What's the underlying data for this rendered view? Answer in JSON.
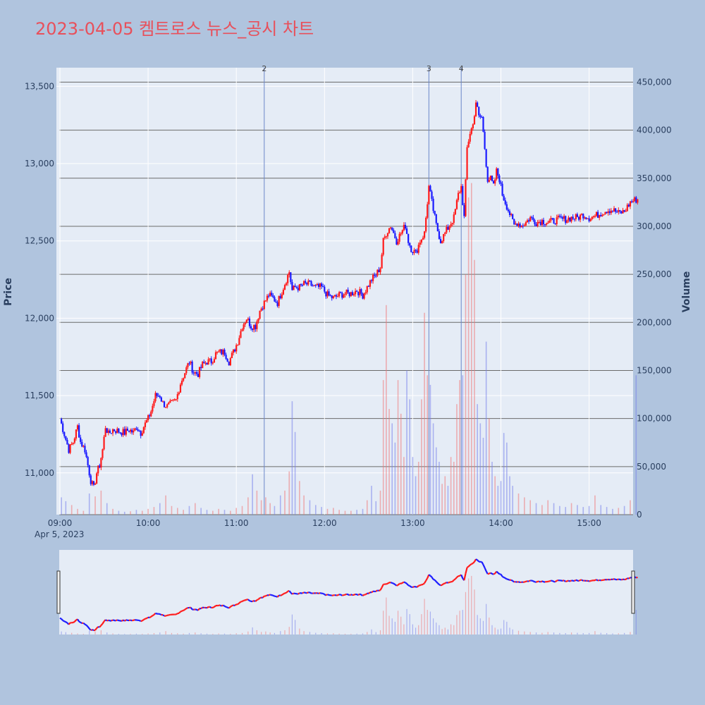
{
  "chart_data": {
    "type": "candlestick",
    "title": "2023-04-05 켐트로스 뉴스_공시 차트",
    "date_label": "Apr 5, 2023",
    "y_price_label": "Price",
    "y_volume_label": "Volume",
    "price_ylim": [
      10730,
      13620
    ],
    "volume_ylim": [
      0,
      465000
    ],
    "x_ticks": [
      "09:00",
      "10:00",
      "11:00",
      "12:00",
      "13:00",
      "14:00",
      "15:00"
    ],
    "x_range_minutes": [
      0,
      393
    ],
    "price_ticks": [
      "11,000",
      "11,500",
      "12,000",
      "12,500",
      "13,000",
      "13,500"
    ],
    "price_tick_values": [
      11000,
      11500,
      12000,
      12500,
      13000,
      13500
    ],
    "volume_ticks": [
      "0",
      "50,000",
      "100,000",
      "150,000",
      "200,000",
      "250,000",
      "300,000",
      "350,000",
      "400,000",
      "450,000"
    ],
    "volume_tick_values": [
      0,
      50000,
      100000,
      150000,
      200000,
      250000,
      300000,
      350000,
      400000,
      450000
    ],
    "annotations": [
      {
        "label": "2",
        "minute": 139
      },
      {
        "label": "3",
        "minute": 251
      },
      {
        "label": "4",
        "minute": 273
      }
    ],
    "price_path": [
      [
        0,
        11350
      ],
      [
        3,
        11250
      ],
      [
        6,
        11150
      ],
      [
        9,
        11200
      ],
      [
        12,
        11300
      ],
      [
        14,
        11200
      ],
      [
        17,
        11150
      ],
      [
        19,
        11050
      ],
      [
        21,
        10950
      ],
      [
        23,
        10900
      ],
      [
        25,
        11000
      ],
      [
        27,
        11050
      ],
      [
        29,
        11150
      ],
      [
        31,
        11300
      ],
      [
        33,
        11250
      ],
      [
        36,
        11280
      ],
      [
        40,
        11270
      ],
      [
        44,
        11260
      ],
      [
        47,
        11280
      ],
      [
        50,
        11260
      ],
      [
        52,
        11300
      ],
      [
        55,
        11260
      ],
      [
        57,
        11300
      ],
      [
        60,
        11350
      ],
      [
        62,
        11400
      ],
      [
        65,
        11500
      ],
      [
        68,
        11500
      ],
      [
        70,
        11450
      ],
      [
        73,
        11430
      ],
      [
        76,
        11450
      ],
      [
        79,
        11470
      ],
      [
        82,
        11580
      ],
      [
        85,
        11650
      ],
      [
        88,
        11720
      ],
      [
        91,
        11650
      ],
      [
        94,
        11640
      ],
      [
        97,
        11700
      ],
      [
        100,
        11720
      ],
      [
        103,
        11720
      ],
      [
        106,
        11770
      ],
      [
        109,
        11780
      ],
      [
        112,
        11780
      ],
      [
        115,
        11720
      ],
      [
        118,
        11780
      ],
      [
        121,
        11850
      ],
      [
        124,
        11950
      ],
      [
        127,
        12000
      ],
      [
        130,
        11950
      ],
      [
        133,
        11950
      ],
      [
        136,
        12050
      ],
      [
        139,
        12100
      ],
      [
        142,
        12150
      ],
      [
        145,
        12130
      ],
      [
        148,
        12100
      ],
      [
        150,
        12150
      ],
      [
        152,
        12200
      ],
      [
        154,
        12250
      ],
      [
        156,
        12300
      ],
      [
        158,
        12180
      ],
      [
        160,
        12200
      ],
      [
        163,
        12200
      ],
      [
        166,
        12220
      ],
      [
        170,
        12220
      ],
      [
        174,
        12200
      ],
      [
        178,
        12200
      ],
      [
        182,
        12150
      ],
      [
        186,
        12130
      ],
      [
        190,
        12150
      ],
      [
        194,
        12160
      ],
      [
        198,
        12160
      ],
      [
        202,
        12180
      ],
      [
        206,
        12150
      ],
      [
        209,
        12200
      ],
      [
        212,
        12250
      ],
      [
        215,
        12280
      ],
      [
        218,
        12330
      ],
      [
        220,
        12500
      ],
      [
        222,
        12550
      ],
      [
        225,
        12600
      ],
      [
        227,
        12550
      ],
      [
        229,
        12500
      ],
      [
        232,
        12550
      ],
      [
        235,
        12600
      ],
      [
        237,
        12500
      ],
      [
        239,
        12450
      ],
      [
        242,
        12420
      ],
      [
        245,
        12500
      ],
      [
        248,
        12550
      ],
      [
        251,
        12850
      ],
      [
        253,
        12750
      ],
      [
        256,
        12600
      ],
      [
        259,
        12500
      ],
      [
        262,
        12550
      ],
      [
        265,
        12600
      ],
      [
        268,
        12650
      ],
      [
        271,
        12800
      ],
      [
        273,
        12850
      ],
      [
        275,
        12650
      ],
      [
        277,
        13100
      ],
      [
        279,
        13200
      ],
      [
        281,
        13250
      ],
      [
        283,
        13400
      ],
      [
        285,
        13300
      ],
      [
        287,
        13300
      ],
      [
        289,
        13100
      ],
      [
        291,
        12900
      ],
      [
        293,
        12900
      ],
      [
        295,
        12850
      ],
      [
        297,
        12950
      ],
      [
        299,
        12900
      ],
      [
        301,
        12800
      ],
      [
        303,
        12750
      ],
      [
        305,
        12700
      ],
      [
        307,
        12650
      ],
      [
        309,
        12600
      ],
      [
        311,
        12620
      ],
      [
        314,
        12600
      ],
      [
        317,
        12620
      ],
      [
        320,
        12650
      ],
      [
        324,
        12620
      ],
      [
        328,
        12630
      ],
      [
        332,
        12620
      ],
      [
        336,
        12630
      ],
      [
        340,
        12640
      ],
      [
        344,
        12640
      ],
      [
        348,
        12650
      ],
      [
        352,
        12650
      ],
      [
        356,
        12670
      ],
      [
        360,
        12650
      ],
      [
        364,
        12660
      ],
      [
        368,
        12680
      ],
      [
        372,
        12700
      ],
      [
        376,
        12700
      ],
      [
        380,
        12680
      ],
      [
        384,
        12690
      ],
      [
        388,
        12750
      ],
      [
        390,
        12760
      ],
      [
        393,
        12770
      ]
    ],
    "volume_bars": [
      [
        1,
        18000
      ],
      [
        4,
        14000
      ],
      [
        8,
        10000
      ],
      [
        12,
        6000
      ],
      [
        16,
        4000
      ],
      [
        20,
        22000
      ],
      [
        24,
        19000
      ],
      [
        28,
        25000
      ],
      [
        32,
        12000
      ],
      [
        36,
        6000
      ],
      [
        40,
        4000
      ],
      [
        44,
        3000
      ],
      [
        48,
        3500
      ],
      [
        52,
        5000
      ],
      [
        56,
        4000
      ],
      [
        60,
        6000
      ],
      [
        64,
        8000
      ],
      [
        68,
        12000
      ],
      [
        72,
        20000
      ],
      [
        76,
        9000
      ],
      [
        80,
        7000
      ],
      [
        84,
        5000
      ],
      [
        88,
        9000
      ],
      [
        92,
        12000
      ],
      [
        96,
        7000
      ],
      [
        100,
        5000
      ],
      [
        104,
        4000
      ],
      [
        108,
        6000
      ],
      [
        112,
        5000
      ],
      [
        116,
        4000
      ],
      [
        120,
        7000
      ],
      [
        124,
        9000
      ],
      [
        128,
        18000
      ],
      [
        131,
        42000
      ],
      [
        134,
        25000
      ],
      [
        137,
        15000
      ],
      [
        140,
        18000
      ],
      [
        143,
        12000
      ],
      [
        146,
        9000
      ],
      [
        150,
        20000
      ],
      [
        153,
        25000
      ],
      [
        156,
        45000
      ],
      [
        158,
        118000
      ],
      [
        160,
        86000
      ],
      [
        163,
        35000
      ],
      [
        166,
        20000
      ],
      [
        170,
        15000
      ],
      [
        174,
        10000
      ],
      [
        178,
        8000
      ],
      [
        182,
        6000
      ],
      [
        186,
        7000
      ],
      [
        190,
        5000
      ],
      [
        194,
        4000
      ],
      [
        198,
        4000
      ],
      [
        202,
        5000
      ],
      [
        206,
        6000
      ],
      [
        209,
        15000
      ],
      [
        212,
        30000
      ],
      [
        215,
        14000
      ],
      [
        218,
        25000
      ],
      [
        220,
        140000
      ],
      [
        222,
        218000
      ],
      [
        224,
        110000
      ],
      [
        226,
        95000
      ],
      [
        228,
        75000
      ],
      [
        230,
        140000
      ],
      [
        232,
        105000
      ],
      [
        234,
        60000
      ],
      [
        236,
        150000
      ],
      [
        238,
        120000
      ],
      [
        240,
        60000
      ],
      [
        242,
        40000
      ],
      [
        244,
        55000
      ],
      [
        246,
        120000
      ],
      [
        248,
        210000
      ],
      [
        250,
        145000
      ],
      [
        252,
        135000
      ],
      [
        254,
        95000
      ],
      [
        256,
        70000
      ],
      [
        258,
        55000
      ],
      [
        260,
        32000
      ],
      [
        262,
        40000
      ],
      [
        264,
        30000
      ],
      [
        266,
        60000
      ],
      [
        268,
        55000
      ],
      [
        270,
        115000
      ],
      [
        272,
        140000
      ],
      [
        274,
        145000
      ],
      [
        276,
        250000
      ],
      [
        278,
        330000
      ],
      [
        280,
        345000
      ],
      [
        282,
        265000
      ],
      [
        284,
        115000
      ],
      [
        286,
        95000
      ],
      [
        288,
        80000
      ],
      [
        290,
        180000
      ],
      [
        292,
        100000
      ],
      [
        294,
        55000
      ],
      [
        296,
        40000
      ],
      [
        298,
        30000
      ],
      [
        300,
        35000
      ],
      [
        302,
        85000
      ],
      [
        304,
        75000
      ],
      [
        306,
        40000
      ],
      [
        308,
        30000
      ],
      [
        312,
        22000
      ],
      [
        316,
        18000
      ],
      [
        320,
        15000
      ],
      [
        324,
        12000
      ],
      [
        328,
        10000
      ],
      [
        332,
        15000
      ],
      [
        336,
        12000
      ],
      [
        340,
        9000
      ],
      [
        344,
        8000
      ],
      [
        348,
        12000
      ],
      [
        352,
        10000
      ],
      [
        356,
        8000
      ],
      [
        360,
        9000
      ],
      [
        364,
        20000
      ],
      [
        368,
        10000
      ],
      [
        372,
        8000
      ],
      [
        376,
        6000
      ],
      [
        380,
        7000
      ],
      [
        384,
        9000
      ],
      [
        388,
        15000
      ],
      [
        392,
        145000
      ]
    ]
  }
}
